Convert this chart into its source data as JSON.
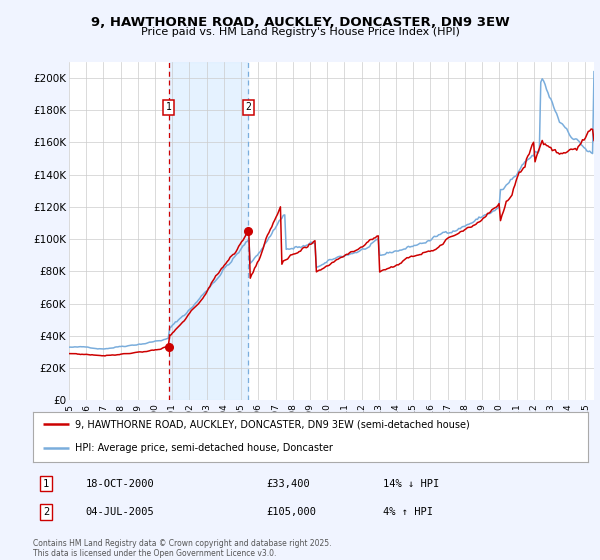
{
  "title_line1": "9, HAWTHORNE ROAD, AUCKLEY, DONCASTER, DN9 3EW",
  "title_line2": "Price paid vs. HM Land Registry's House Price Index (HPI)",
  "xlim_start": 1995.0,
  "xlim_end": 2025.5,
  "ylim_bottom": 0,
  "ylim_top": 210000,
  "sale1_date": 2000.8,
  "sale1_price": 33400,
  "sale1_label": "1",
  "sale1_text": "18-OCT-2000",
  "sale1_amount": "£33,400",
  "sale1_hpi": "14% ↓ HPI",
  "sale2_date": 2005.42,
  "sale2_price": 105000,
  "sale2_label": "2",
  "sale2_text": "04-JUL-2005",
  "sale2_amount": "£105,000",
  "sale2_hpi": "4% ↑ HPI",
  "line_red_color": "#cc0000",
  "line_blue_color": "#7aaddc",
  "bg_color": "#f0f4ff",
  "plot_bg_color": "#ffffff",
  "grid_color": "#cccccc",
  "shade_color": "#ddeeff",
  "legend_line1": "9, HAWTHORNE ROAD, AUCKLEY, DONCASTER, DN9 3EW (semi-detached house)",
  "legend_line2": "HPI: Average price, semi-detached house, Doncaster",
  "footer": "Contains HM Land Registry data © Crown copyright and database right 2025.\nThis data is licensed under the Open Government Licence v3.0.",
  "ytick_labels": [
    "£0",
    "£20K",
    "£40K",
    "£60K",
    "£80K",
    "£100K",
    "£120K",
    "£140K",
    "£160K",
    "£180K",
    "£200K"
  ],
  "ytick_values": [
    0,
    20000,
    40000,
    60000,
    80000,
    100000,
    120000,
    140000,
    160000,
    180000,
    200000
  ]
}
